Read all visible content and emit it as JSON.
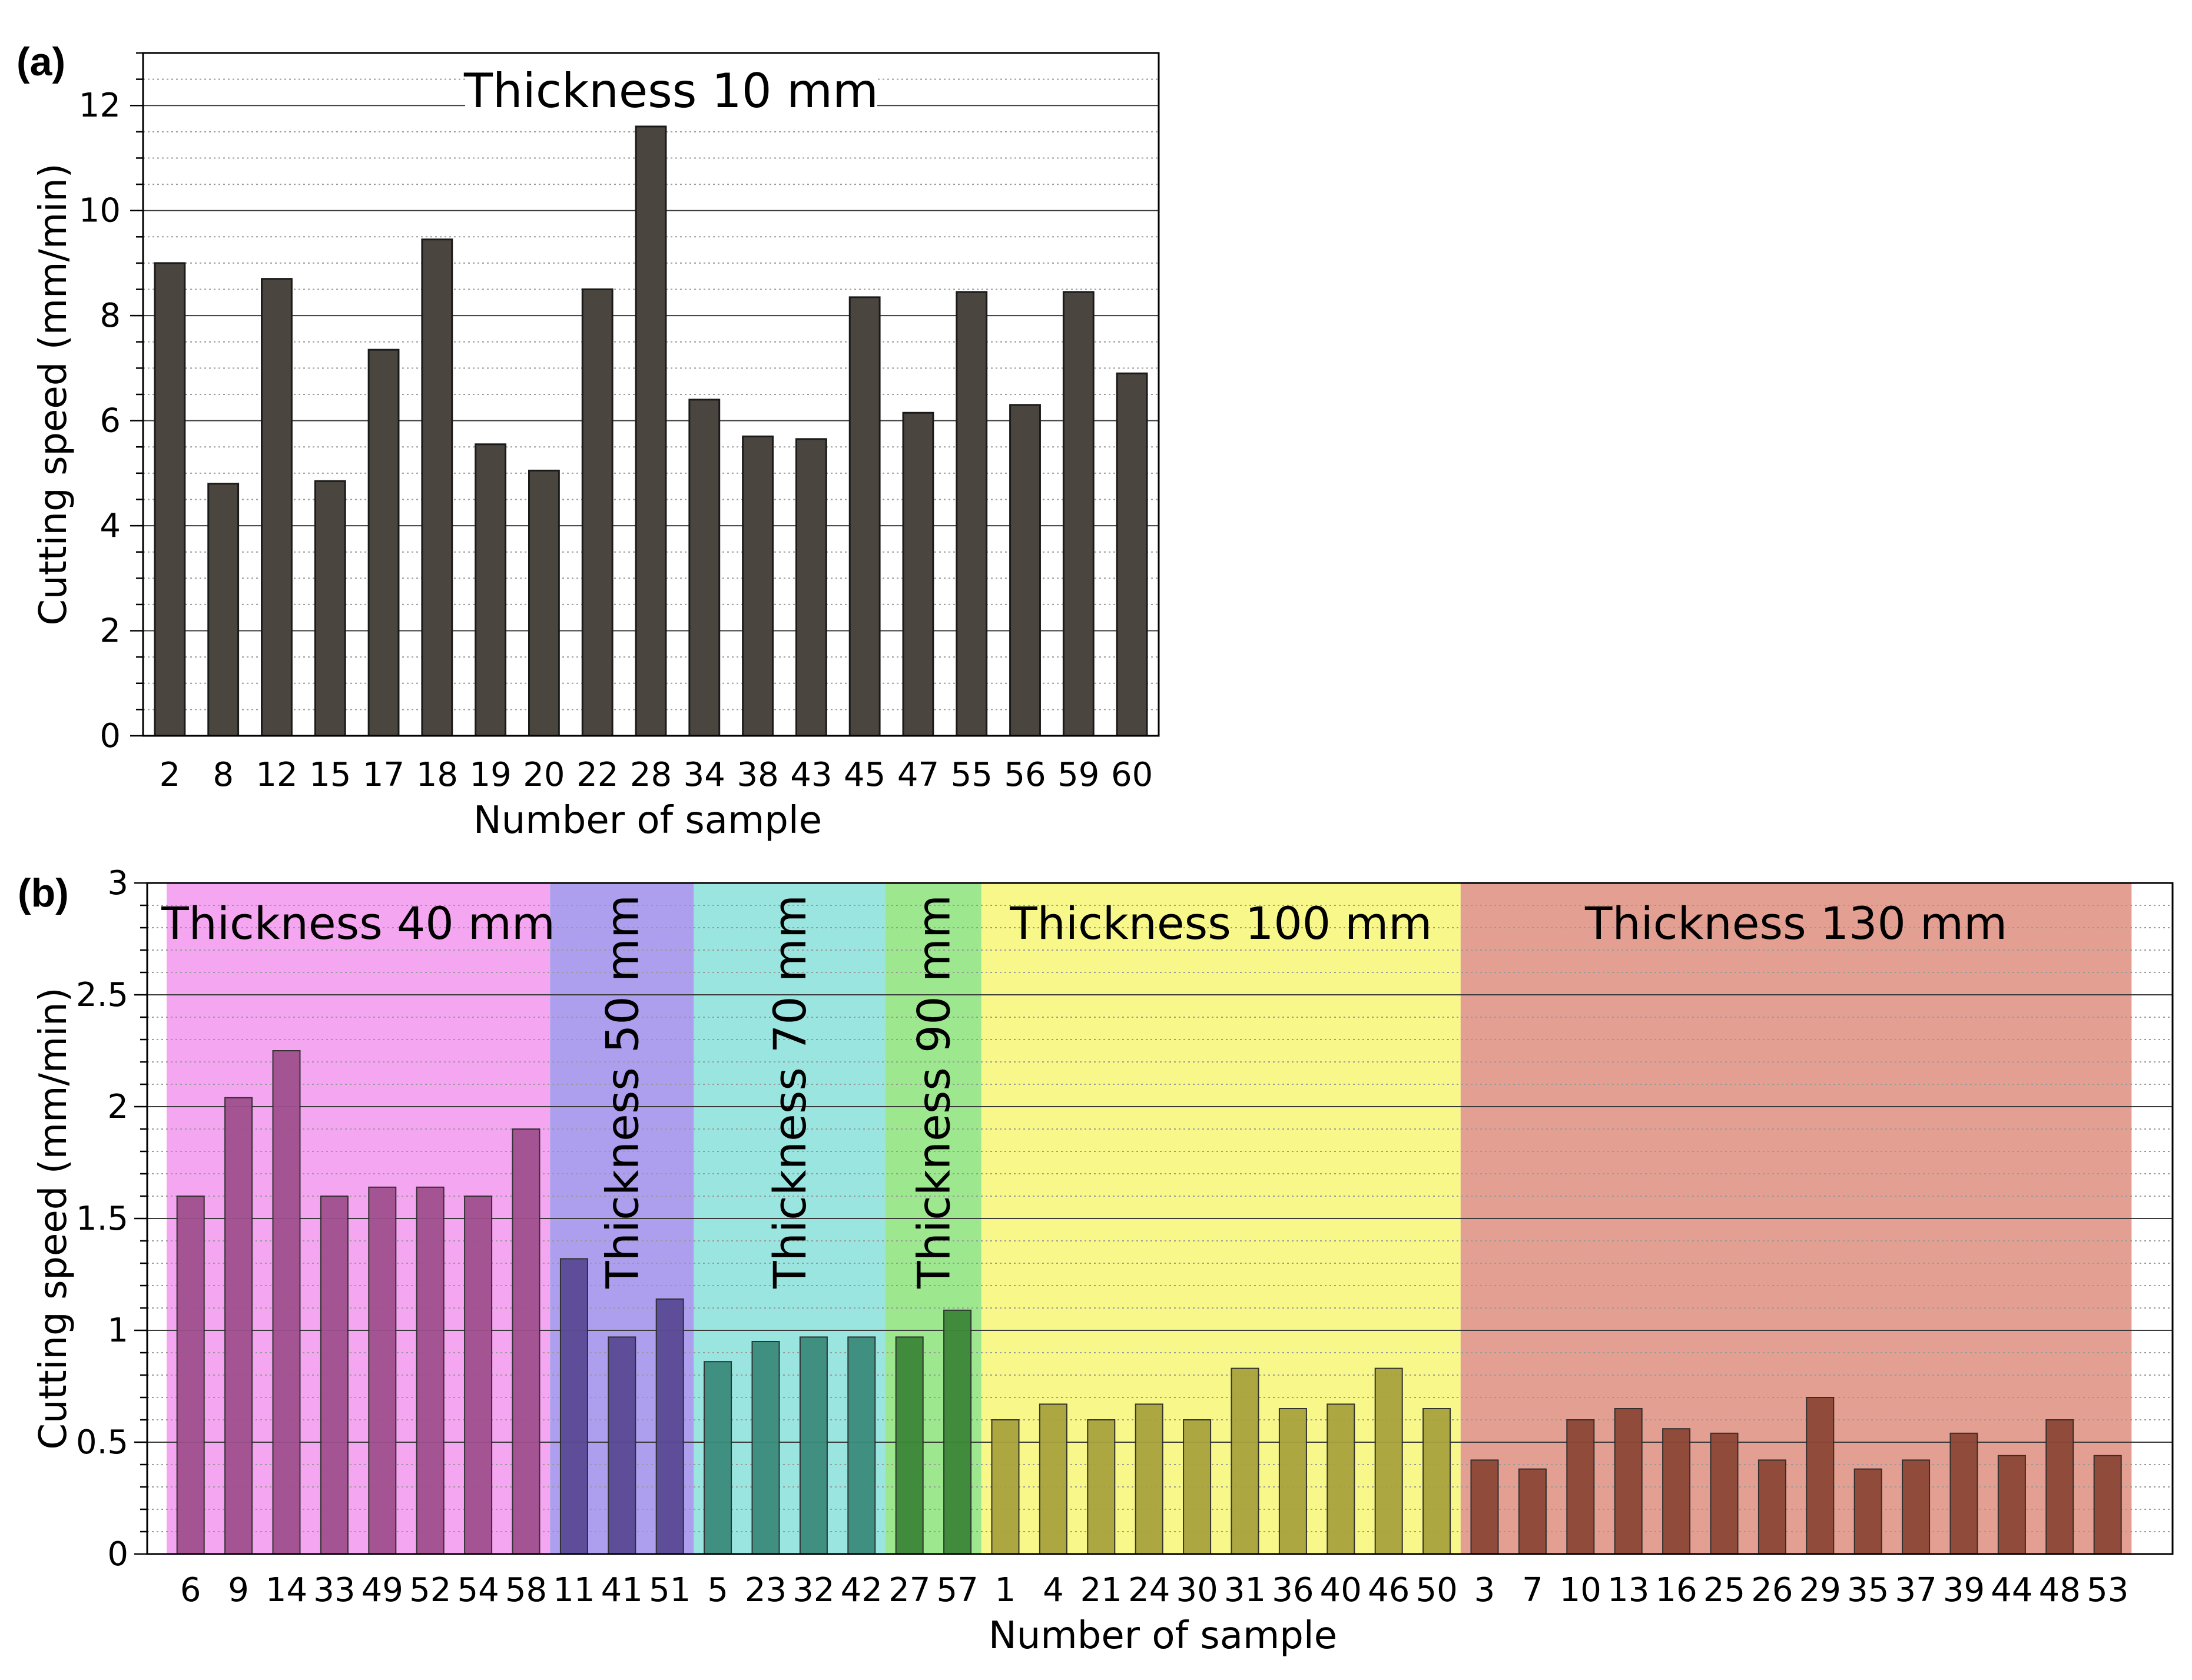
{
  "chart_data": [
    {
      "panel": "(a)",
      "type": "bar",
      "title": "Thickness 10 mm",
      "xlabel": "Number of sample",
      "ylabel": "Cutting speed (mm/min)",
      "ylim": [
        0,
        13
      ],
      "yticks": [
        "0",
        "2",
        "4",
        "6",
        "8",
        "10",
        "12"
      ],
      "bar_color": "#4a463f",
      "categories": [
        "2",
        "8",
        "12",
        "15",
        "17",
        "18",
        "19",
        "20",
        "22",
        "28",
        "34",
        "38",
        "43",
        "45",
        "47",
        "55",
        "56",
        "59",
        "60"
      ],
      "values": [
        9.0,
        4.8,
        8.7,
        4.85,
        7.35,
        9.45,
        5.55,
        5.05,
        8.5,
        11.6,
        6.4,
        5.7,
        5.65,
        8.35,
        6.15,
        8.45,
        6.3,
        8.45,
        6.9
      ]
    },
    {
      "panel": "(b)",
      "type": "bar",
      "xlabel": "Number of sample",
      "ylabel": "Cutting speed (mm/min)",
      "ylim": [
        0,
        3
      ],
      "yticks": [
        "0",
        "0.5",
        "1",
        "1.5",
        "2",
        "2.5",
        "3"
      ],
      "groups": [
        {
          "label": "Thickness 40 mm",
          "orientation": "horizontal",
          "bg_color": "#f5a6f0",
          "bar_color": "#a0508e",
          "categories": [
            "6",
            "9",
            "14",
            "33",
            "49",
            "52",
            "54",
            "58"
          ],
          "values": [
            1.6,
            2.04,
            2.25,
            1.6,
            1.64,
            1.64,
            1.6,
            1.9
          ]
        },
        {
          "label": "Thickness 50 mm",
          "orientation": "vertical",
          "bg_color": "#ae9fee",
          "bar_color": "#5a4a96",
          "categories": [
            "11",
            "41",
            "51"
          ],
          "values": [
            1.32,
            0.97,
            1.14
          ]
        },
        {
          "label": "Thickness 70 mm",
          "orientation": "vertical",
          "bg_color": "#9be5e0",
          "bar_color": "#3c8c7e",
          "categories": [
            "5",
            "23",
            "32",
            "42"
          ],
          "values": [
            0.86,
            0.95,
            0.97,
            0.97
          ]
        },
        {
          "label": "Thickness 90 mm",
          "orientation": "vertical",
          "bg_color": "#9de78f",
          "bar_color": "#3d8838",
          "categories": [
            "27",
            "57"
          ],
          "values": [
            0.97,
            1.09
          ]
        },
        {
          "label": "Thickness 100 mm",
          "orientation": "horizontal",
          "bg_color": "#f7f78a",
          "bar_color": "#a8a33e",
          "categories": [
            "1",
            "4",
            "21",
            "24",
            "30",
            "31",
            "36",
            "40",
            "46",
            "50"
          ],
          "values": [
            0.6,
            0.67,
            0.6,
            0.67,
            0.6,
            0.83,
            0.65,
            0.67,
            0.83,
            0.65
          ]
        },
        {
          "label": "Thickness 130 mm",
          "orientation": "horizontal",
          "bg_color": "#e3a092",
          "bar_color": "#8c4736",
          "categories": [
            "3",
            "7",
            "10",
            "13",
            "16",
            "25",
            "26",
            "29",
            "35",
            "37",
            "39",
            "44",
            "48",
            "53"
          ],
          "values": [
            0.42,
            0.38,
            0.6,
            0.65,
            0.56,
            0.54,
            0.42,
            0.7,
            0.38,
            0.42,
            0.54,
            0.44,
            0.6,
            0.44
          ]
        }
      ]
    }
  ]
}
